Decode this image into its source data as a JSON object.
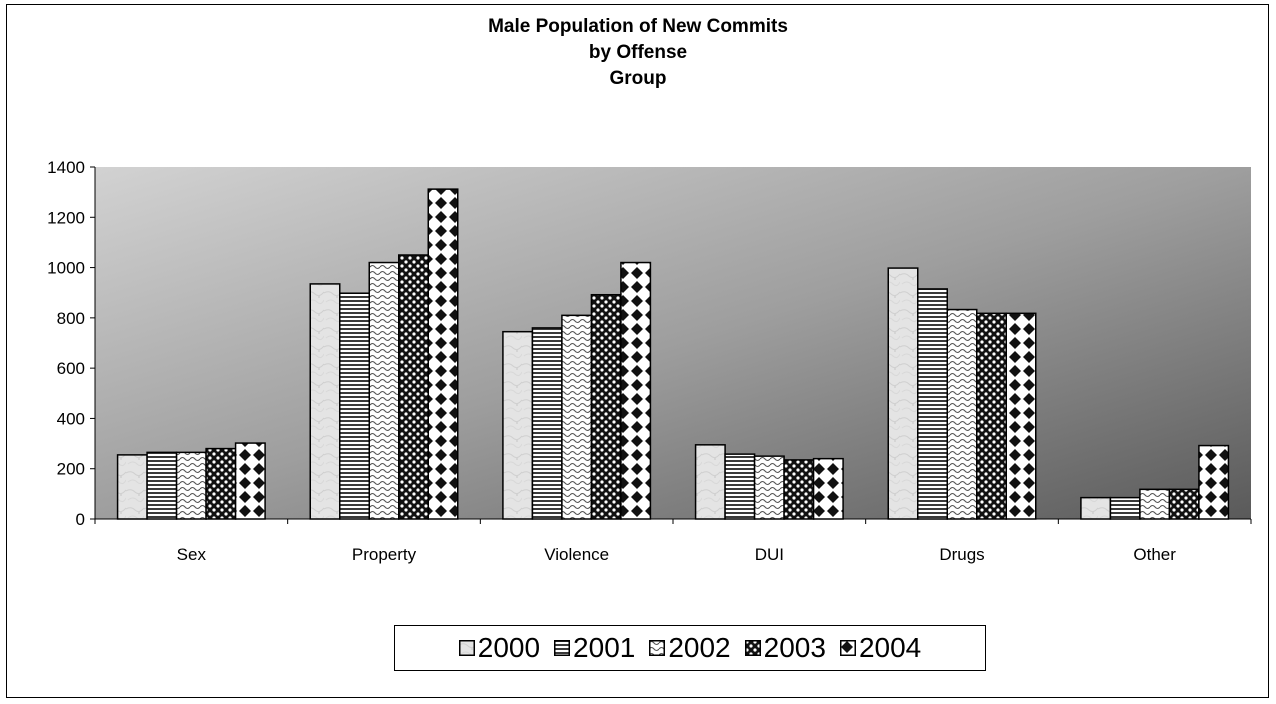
{
  "chart_data": {
    "type": "bar",
    "title_lines": [
      "Male Population of New Commits",
      "by Offense",
      "Group"
    ],
    "xlabel": "",
    "ylabel": "",
    "categories": [
      "Sex",
      "Property",
      "Violence",
      "DUI",
      "Drugs",
      "Other"
    ],
    "series": [
      {
        "name": "2000",
        "values": [
          255,
          935,
          745,
          295,
          998,
          85
        ],
        "pattern": "marble"
      },
      {
        "name": "2001",
        "values": [
          265,
          898,
          760,
          258,
          915,
          85
        ],
        "pattern": "hlines"
      },
      {
        "name": "2002",
        "values": [
          265,
          1020,
          810,
          250,
          833,
          118
        ],
        "pattern": "waves"
      },
      {
        "name": "2003",
        "values": [
          280,
          1050,
          892,
          235,
          818,
          118
        ],
        "pattern": "dots"
      },
      {
        "name": "2004",
        "values": [
          302,
          1312,
          1020,
          240,
          818,
          292
        ],
        "pattern": "diamonds"
      }
    ],
    "ylim": [
      0,
      1400
    ],
    "yticks": [
      0,
      200,
      400,
      600,
      800,
      1000,
      1200,
      1400
    ],
    "grid": false,
    "legend_position": "bottom",
    "plot_background": "gradient light-gray to dark-gray"
  }
}
